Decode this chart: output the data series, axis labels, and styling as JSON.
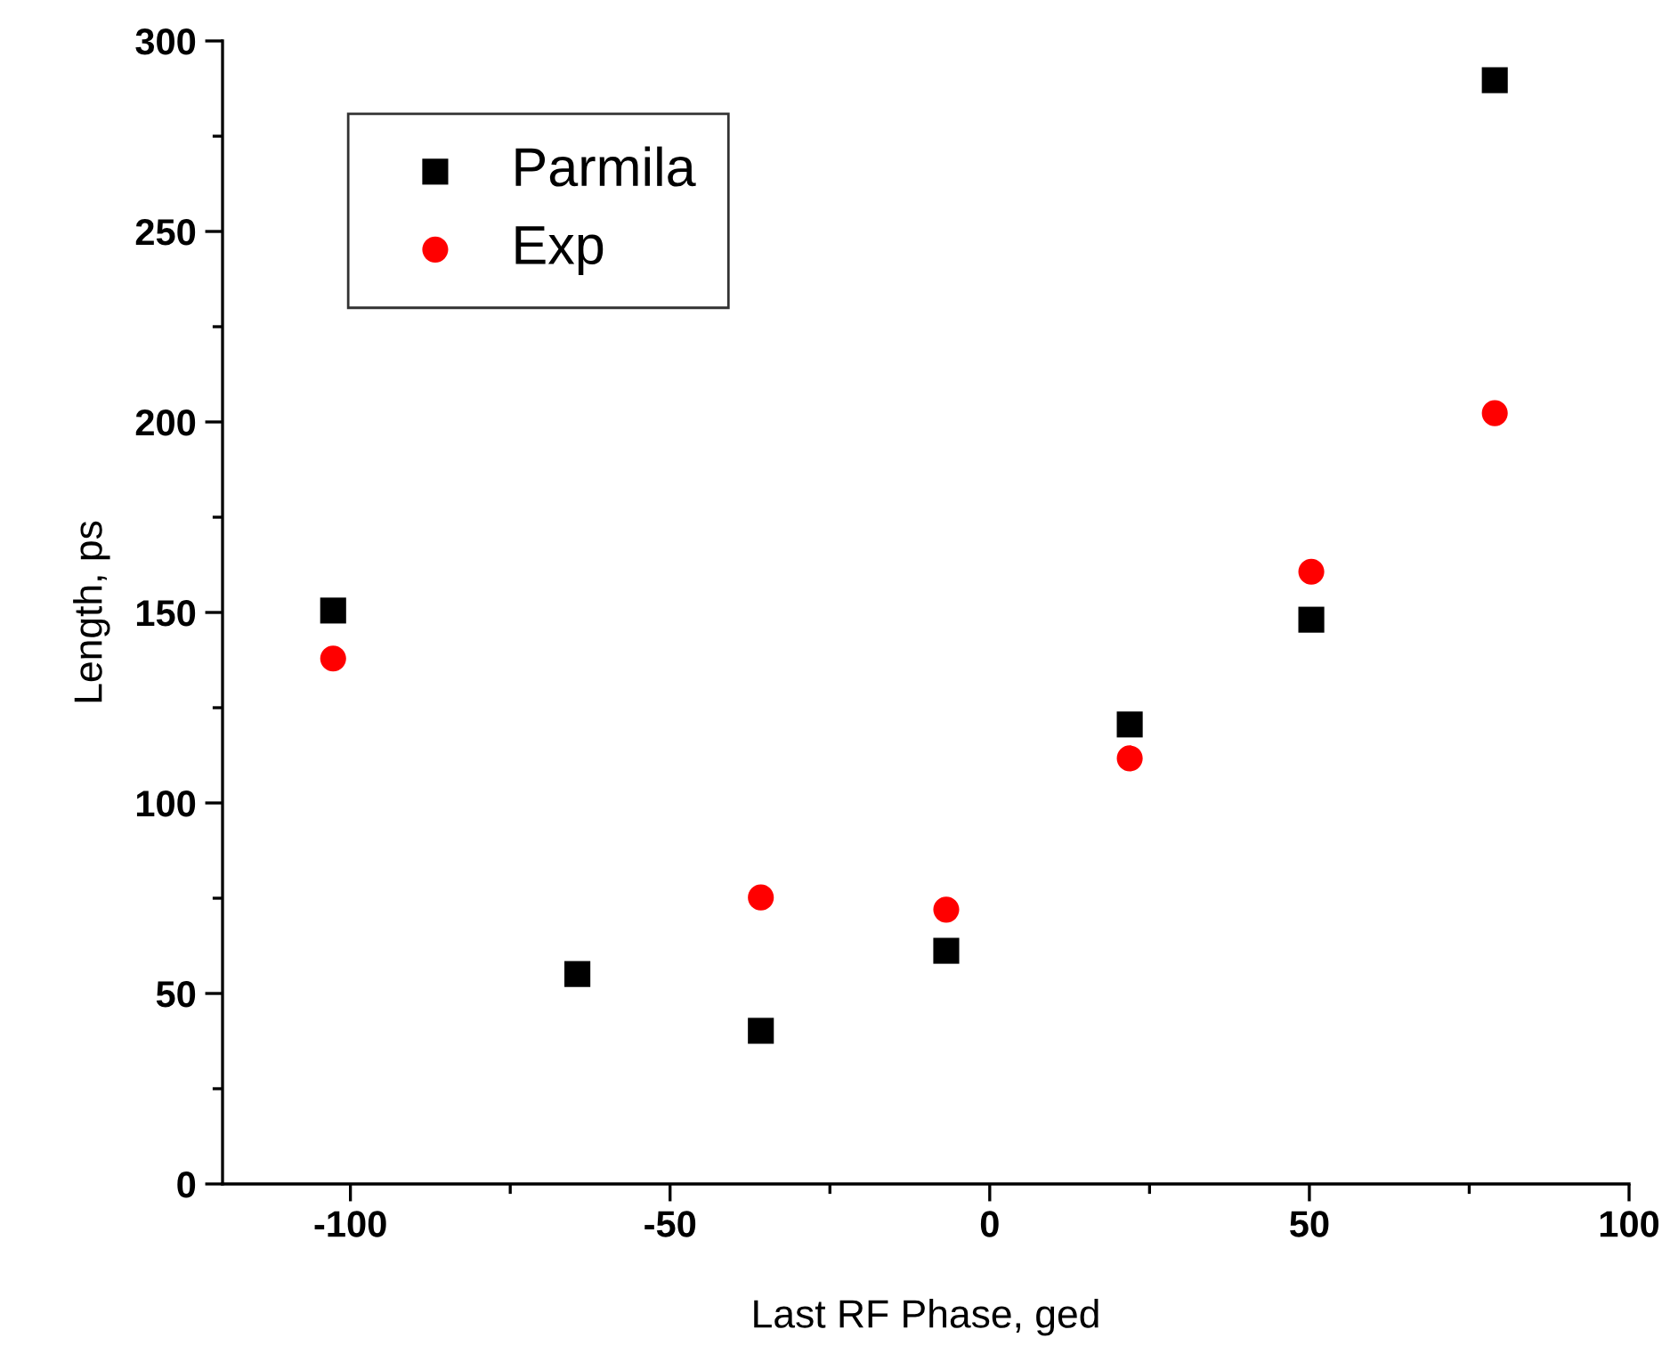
{
  "chart_data": {
    "type": "scatter",
    "xlabel": "Last RF Phase, ged",
    "ylabel": "Length, ps",
    "series": [
      {
        "name": "Parmila",
        "color": "#000000",
        "marker": "square",
        "x": [
          -102.7,
          -64.5,
          -35.8,
          -6.8,
          21.9,
          50.3,
          79
        ],
        "values": [
          150.5,
          55.1,
          40.2,
          61.2,
          120.6,
          148.1,
          289.7
        ]
      },
      {
        "name": "Exp",
        "color": "#ff0000",
        "marker": "circle",
        "x": [
          -102.7,
          -35.8,
          -6.8,
          21.9,
          50.3,
          79
        ],
        "values": [
          137.9,
          75.2,
          72.0,
          111.7,
          160.7,
          202.3
        ]
      }
    ],
    "xlim": [
      -120,
      100
    ],
    "xticks": [
      -100,
      -50,
      0,
      50,
      100
    ],
    "ylim": [
      0,
      300
    ],
    "yticks": [
      0,
      50,
      100,
      150,
      200,
      250,
      300
    ],
    "grid": false,
    "legend": "top left"
  }
}
